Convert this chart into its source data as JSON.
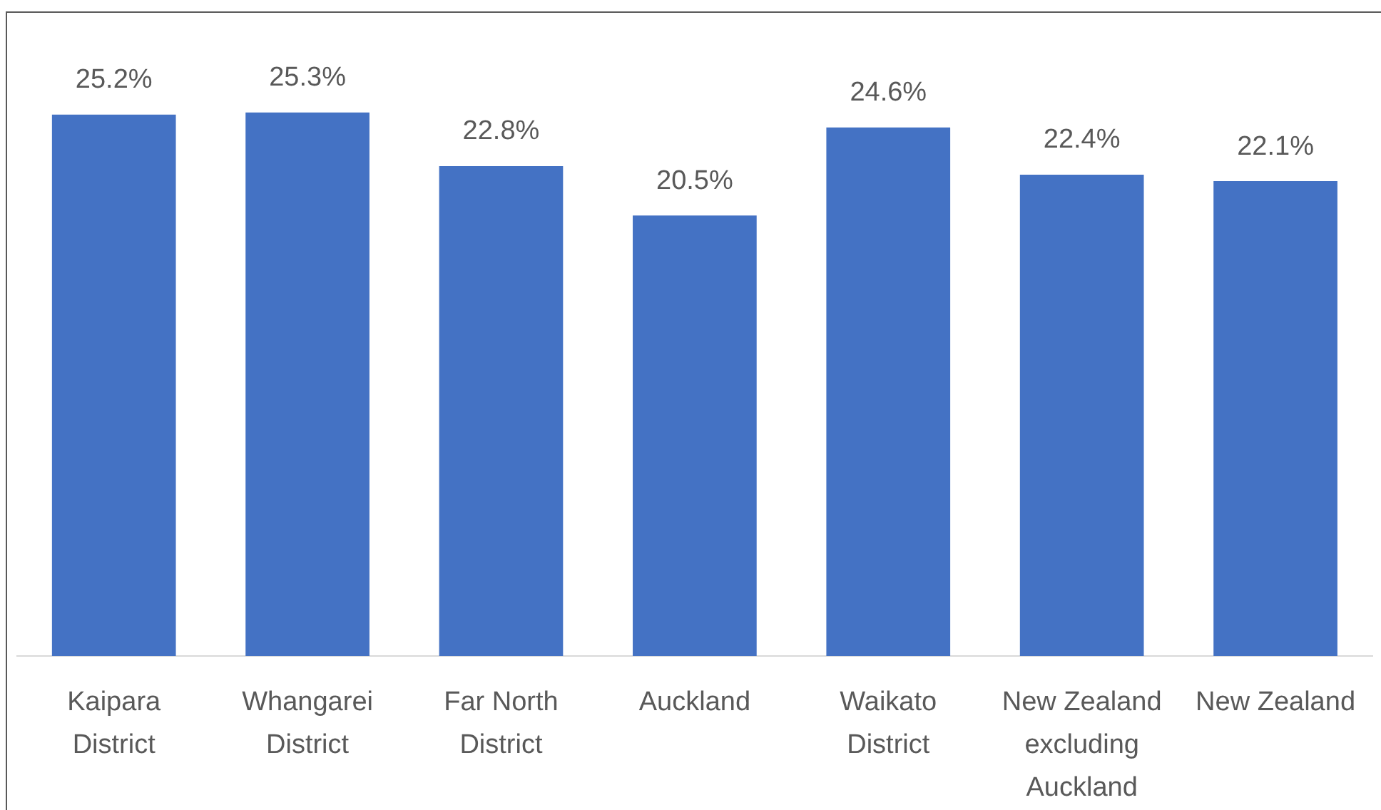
{
  "chart_data": {
    "type": "bar",
    "categories": [
      "Kaipara District",
      "Whangarei District",
      "Far North District",
      "Auckland",
      "Waikato District",
      "New Zealand excluding Auckland",
      "New Zealand"
    ],
    "values": [
      25.2,
      25.3,
      22.8,
      20.5,
      24.6,
      22.4,
      22.1
    ],
    "value_labels": [
      "25.2%",
      "25.3%",
      "22.8%",
      "20.5%",
      "24.6%",
      "22.4%",
      "22.1%"
    ],
    "color": "#4472c4",
    "grid": false,
    "tick_labels": "x"
  }
}
